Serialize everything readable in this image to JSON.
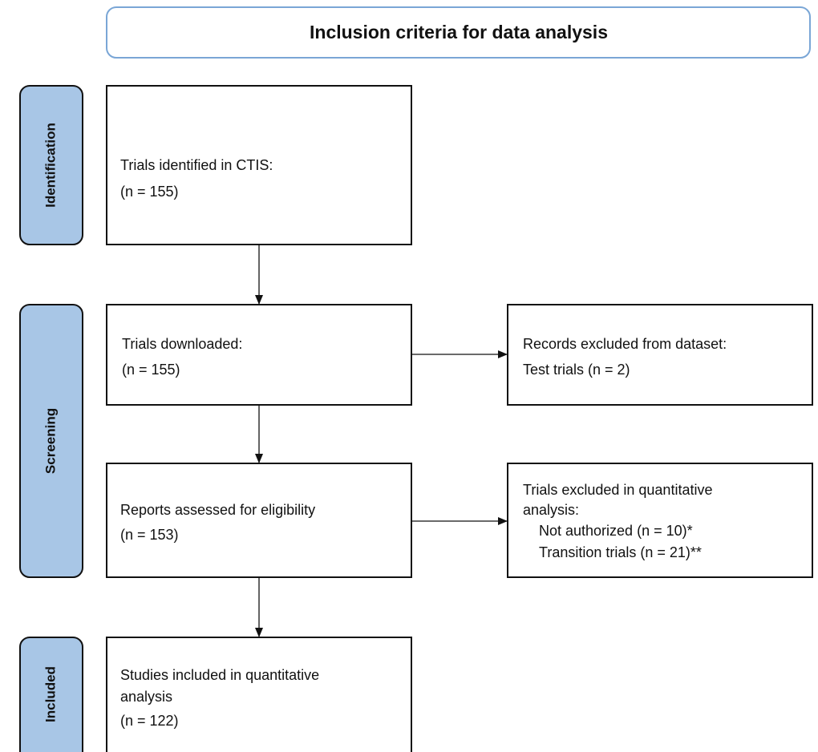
{
  "title": "Inclusion criteria for data analysis",
  "stages": [
    "Identification",
    "Screening",
    "Included"
  ],
  "boxes": [
    {
      "lines": [
        "Trials identified in CTIS:",
        "(n = 155)"
      ]
    },
    {
      "lines": [
        "Trials downloaded:",
        "(n = 155)"
      ]
    },
    {
      "lines": [
        "Records excluded from dataset:",
        "Test trials (n = 2)"
      ]
    },
    {
      "lines": [
        "Reports assessed for eligibility",
        "(n = 153)"
      ]
    },
    {
      "lines": [
        "Trials excluded in quantitative",
        "analysis:",
        "Not authorized (n = 10)*",
        "Transition trials (n = 21)**"
      ]
    },
    {
      "lines": [
        "Studies included in quantitative",
        "analysis",
        "(n = 122)"
      ]
    }
  ]
}
